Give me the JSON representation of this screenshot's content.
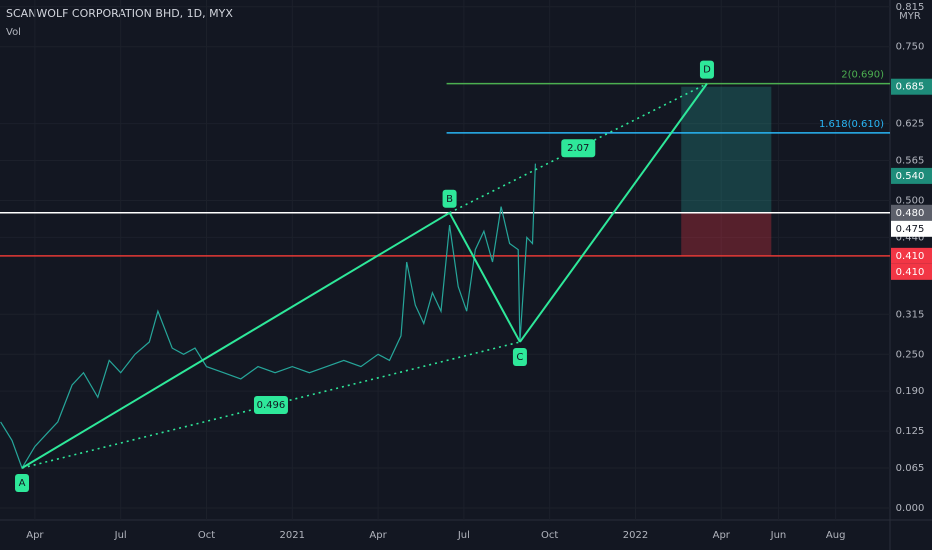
{
  "chart_data": {
    "type": "line",
    "title": "SCANWOLF CORPORATION BHD, 1D, MYX",
    "subtitle": "Vol",
    "currency": "MYR",
    "xlim": [
      1.78,
      32.9
    ],
    "ylim": [
      -0.0195,
      0.826
    ],
    "xticks": [
      {
        "value": 3,
        "label": "Apr"
      },
      {
        "value": 6,
        "label": "Jul"
      },
      {
        "value": 9,
        "label": "Oct"
      },
      {
        "value": 12,
        "label": "2021"
      },
      {
        "value": 15,
        "label": "Apr"
      },
      {
        "value": 18,
        "label": "Jul"
      },
      {
        "value": 21,
        "label": "Oct"
      },
      {
        "value": 24,
        "label": "2022"
      },
      {
        "value": 27,
        "label": "Apr"
      },
      {
        "value": 29,
        "label": "Jun"
      },
      {
        "value": 31,
        "label": "Aug"
      }
    ],
    "yticks": [
      {
        "value": 0.815,
        "label": "0.815"
      },
      {
        "value": 0.75,
        "label": "0.750"
      },
      {
        "value": 0.625,
        "label": "0.625"
      },
      {
        "value": 0.565,
        "label": "0.565"
      },
      {
        "value": 0.5,
        "label": "0.500"
      },
      {
        "value": 0.44,
        "label": "0.440"
      },
      {
        "value": 0.315,
        "label": "0.315"
      },
      {
        "value": 0.25,
        "label": "0.250"
      },
      {
        "value": 0.19,
        "label": "0.190"
      },
      {
        "value": 0.125,
        "label": "0.125"
      },
      {
        "value": 0.065,
        "label": "0.065"
      },
      {
        "value": 0.0,
        "label": "0.000"
      }
    ],
    "grid": true,
    "x": [
      1.8,
      2.2,
      2.55,
      3.0,
      3.4,
      3.8,
      4.3,
      4.7,
      5.2,
      5.6,
      6.0,
      6.5,
      7.0,
      7.3,
      7.8,
      8.2,
      8.6,
      9.0,
      9.6,
      10.2,
      10.8,
      11.4,
      12.0,
      12.6,
      13.2,
      13.8,
      14.4,
      15.0,
      15.4,
      15.8,
      16.0,
      16.3,
      16.6,
      16.9,
      17.2,
      17.5,
      17.8,
      18.1,
      18.4,
      18.7,
      19.0,
      19.3,
      19.6,
      19.9,
      19.96,
      20.2,
      20.4,
      20.5
    ],
    "series": [
      {
        "name": "Price",
        "color": "#26a69a",
        "values": [
          0.14,
          0.11,
          0.065,
          0.1,
          0.12,
          0.14,
          0.2,
          0.22,
          0.18,
          0.24,
          0.22,
          0.25,
          0.27,
          0.32,
          0.26,
          0.25,
          0.26,
          0.23,
          0.22,
          0.21,
          0.23,
          0.22,
          0.23,
          0.22,
          0.23,
          0.24,
          0.23,
          0.25,
          0.24,
          0.28,
          0.4,
          0.33,
          0.3,
          0.35,
          0.32,
          0.46,
          0.36,
          0.32,
          0.42,
          0.45,
          0.4,
          0.49,
          0.43,
          0.42,
          0.27,
          0.44,
          0.43,
          0.56
        ]
      }
    ],
    "pattern": {
      "color": "#2ee89a",
      "points": [
        {
          "label": "A",
          "x": 2.55,
          "value": 0.065
        },
        {
          "label": "B",
          "x": 17.5,
          "value": 0.48
        },
        {
          "label": "C",
          "x": 19.96,
          "value": 0.27
        },
        {
          "label": "D",
          "x": 26.5,
          "value": 0.69
        }
      ],
      "ratios": [
        0.496,
        2.07
      ]
    },
    "fib_levels": [
      {
        "label": "2(0.690)",
        "value": 0.69,
        "color": "#4caf50"
      },
      {
        "label": "1.618(0.610)",
        "value": 0.61,
        "color": "#29b6f6"
      }
    ],
    "levels": [
      {
        "value": 0.48,
        "color": "#ffffff"
      },
      {
        "value": 0.41,
        "color": "#e53935"
      }
    ],
    "position": {
      "x": [
        25.6,
        28.75
      ],
      "entry": 0.48,
      "target": 0.685,
      "stop": 0.41
    },
    "price_tags": [
      {
        "value": 0.685,
        "label": "0.685",
        "color": "#1e8c7a"
      },
      {
        "value": 0.54,
        "label": "0.540",
        "color": "#1e8c7a"
      },
      {
        "value": 0.48,
        "label": "0.480",
        "color": "#5d606b"
      },
      {
        "value": 0.475,
        "label": "0.475",
        "color": "#ffffff"
      },
      {
        "value": 0.41,
        "label": "0.410",
        "color": "#f23645"
      },
      {
        "value": 0.41,
        "label": "0.410",
        "color": "#f23645"
      }
    ]
  }
}
